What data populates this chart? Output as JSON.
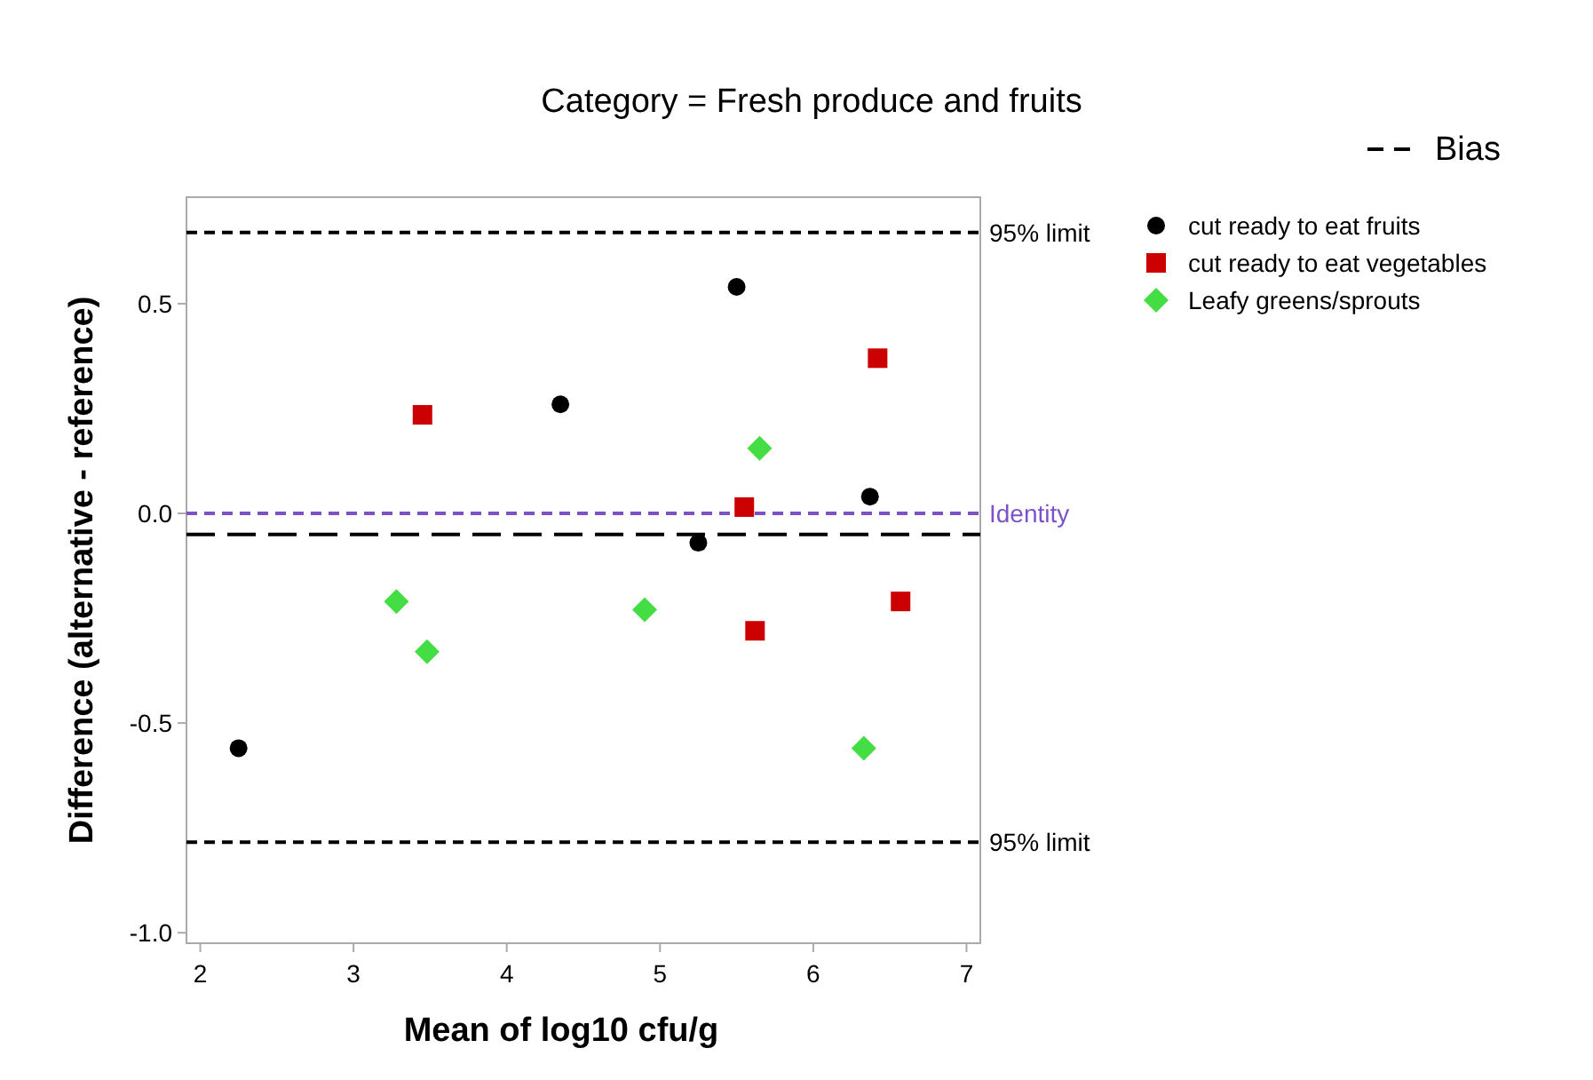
{
  "chart_data": {
    "type": "scatter",
    "title": "Category = Fresh produce and fruits",
    "xlabel": "Mean of log10 cfu/g",
    "ylabel": "Difference (alternative - reference)",
    "xlim": [
      1.91,
      7.09
    ],
    "xticks": [
      2,
      3,
      4,
      5,
      6,
      7
    ],
    "ylim": [
      -1.025,
      0.754
    ],
    "yticks": [
      {
        "value": 0.5,
        "label": "0.5"
      },
      {
        "value": 0,
        "label": "0.0"
      },
      {
        "value": -0.5,
        "label": "-0.5"
      },
      {
        "value": -1,
        "label": "-1.0"
      }
    ],
    "grid": false,
    "legend": "top right",
    "series": [
      {
        "name": "cut ready to eat fruits",
        "color": "#000000",
        "marker": "circle",
        "x": [
          2.25,
          4.35,
          5.5,
          5.25,
          6.37
        ],
        "values": [
          -0.56,
          0.26,
          0.54,
          -0.07,
          0.04
        ]
      },
      {
        "name": "cut ready to eat vegetables",
        "color": "#cc0000",
        "marker": "square",
        "x": [
          3.45,
          5.55,
          6.42,
          5.62,
          6.57
        ],
        "values": [
          0.235,
          0.015,
          0.37,
          -0.28,
          -0.21
        ]
      },
      {
        "name": "Leafy greens/sprouts",
        "color": "#44dd44",
        "marker": "diamond",
        "x": [
          3.28,
          3.48,
          4.9,
          5.65,
          6.33
        ],
        "values": [
          -0.21,
          -0.33,
          -0.23,
          0.155,
          -0.56
        ]
      }
    ],
    "ref_lines": [
      {
        "axis": "y",
        "value": 0.67,
        "label": "95% limit",
        "color": "#000000",
        "line_style": "dashed"
      },
      {
        "axis": "y",
        "value": -0.784,
        "label": "95% limit",
        "color": "#000000",
        "line_style": "dashed"
      },
      {
        "axis": "y",
        "value": 0,
        "label": "Identity",
        "color": "#7b52c8",
        "line_style": "dashed"
      },
      {
        "axis": "y",
        "value": -0.05,
        "label": "Bias",
        "color": "#000000",
        "line_style": "longdash"
      }
    ]
  }
}
